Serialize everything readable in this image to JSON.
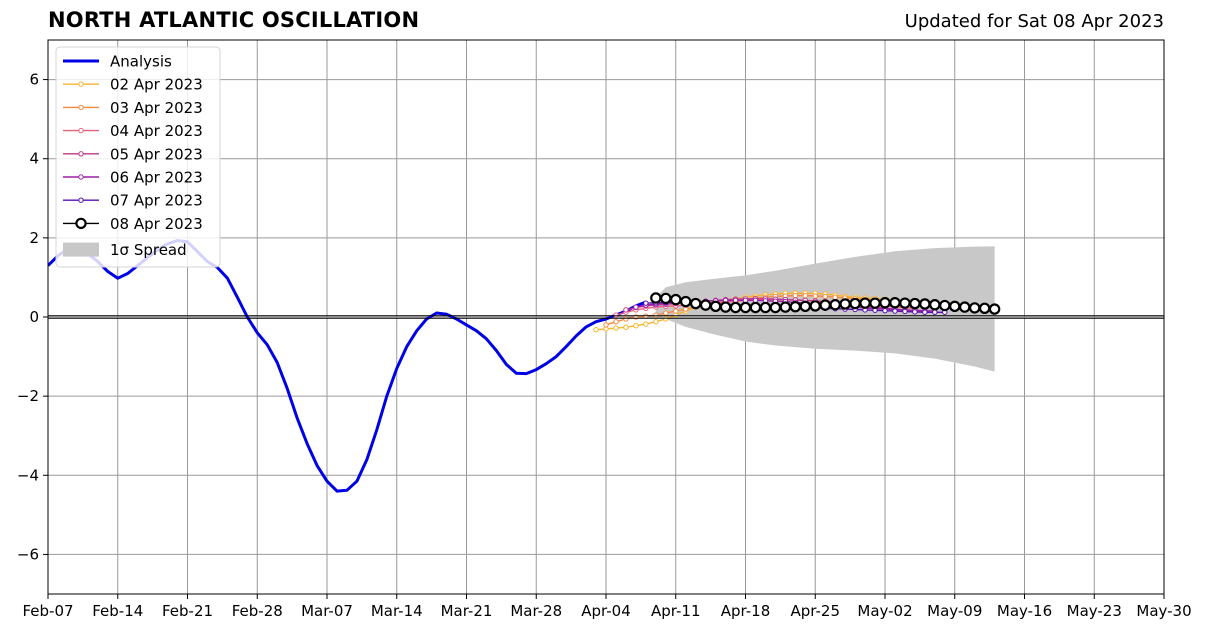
{
  "chart_data": {
    "type": "line",
    "title": "NORTH ATLANTIC OSCILLATION",
    "subtitle": "Updated for Sat 08 Apr 2023",
    "xlabel": "",
    "ylabel": "",
    "x_range": [
      "2023-02-07",
      "2023-05-30"
    ],
    "ylim": [
      -7,
      7
    ],
    "x_tick_labels": [
      "Feb-07",
      "Feb-14",
      "Feb-21",
      "Feb-28",
      "Mar-07",
      "Mar-14",
      "Mar-21",
      "Mar-28",
      "Apr-04",
      "Apr-11",
      "Apr-18",
      "Apr-25",
      "May-02",
      "May-09",
      "May-16",
      "May-23",
      "May-30"
    ],
    "y_ticks": [
      -6,
      -4,
      -2,
      0,
      2,
      4,
      6
    ],
    "y_tick_labels": [
      "−6",
      "−4",
      "−2",
      "0",
      "2",
      "4",
      "6"
    ],
    "grid": true,
    "legend_position": "top-left",
    "spread": {
      "label": "1σ Spread",
      "color": "#c8c8c8",
      "x": [
        "2023-04-09",
        "2023-04-10",
        "2023-04-12",
        "2023-04-15",
        "2023-04-18",
        "2023-04-21",
        "2023-04-25",
        "2023-04-29",
        "2023-05-03",
        "2023-05-07",
        "2023-05-11",
        "2023-05-13"
      ],
      "upper": [
        0.5,
        0.75,
        0.88,
        0.97,
        1.05,
        1.17,
        1.35,
        1.52,
        1.66,
        1.74,
        1.78,
        1.79
      ],
      "lower": [
        0.1,
        -0.05,
        -0.25,
        -0.45,
        -0.62,
        -0.72,
        -0.8,
        -0.85,
        -0.92,
        -1.05,
        -1.25,
        -1.38
      ]
    },
    "series": [
      {
        "name": "Analysis",
        "color": "#0000e6",
        "marker": "none",
        "x": [
          "2023-02-07",
          "2023-02-08",
          "2023-02-09",
          "2023-02-10",
          "2023-02-11",
          "2023-02-12",
          "2023-02-13",
          "2023-02-14",
          "2023-02-15",
          "2023-02-16",
          "2023-02-17",
          "2023-02-18",
          "2023-02-19",
          "2023-02-20",
          "2023-02-21",
          "2023-02-22",
          "2023-02-23",
          "2023-02-24",
          "2023-02-25",
          "2023-02-26",
          "2023-02-27",
          "2023-02-28",
          "2023-03-01",
          "2023-03-02",
          "2023-03-03",
          "2023-03-04",
          "2023-03-05",
          "2023-03-06",
          "2023-03-07",
          "2023-03-08",
          "2023-03-09",
          "2023-03-10",
          "2023-03-11",
          "2023-03-12",
          "2023-03-13",
          "2023-03-14",
          "2023-03-15",
          "2023-03-16",
          "2023-03-17",
          "2023-03-18",
          "2023-03-19",
          "2023-03-20",
          "2023-03-21",
          "2023-03-22",
          "2023-03-23",
          "2023-03-24",
          "2023-03-25",
          "2023-03-26",
          "2023-03-27",
          "2023-03-28",
          "2023-03-29",
          "2023-03-30",
          "2023-03-31",
          "2023-04-01",
          "2023-04-02",
          "2023-04-03",
          "2023-04-04",
          "2023-04-05",
          "2023-04-06",
          "2023-04-07",
          "2023-04-08"
        ],
        "values": [
          1.3,
          1.55,
          1.72,
          1.78,
          1.6,
          1.4,
          1.15,
          0.98,
          1.1,
          1.3,
          1.5,
          1.7,
          1.85,
          1.93,
          1.9,
          1.65,
          1.4,
          1.25,
          0.98,
          0.5,
          0.0,
          -0.4,
          -0.7,
          -1.15,
          -1.8,
          -2.55,
          -3.2,
          -3.75,
          -4.15,
          -4.4,
          -4.38,
          -4.15,
          -3.6,
          -2.85,
          -2.0,
          -1.3,
          -0.75,
          -0.35,
          -0.05,
          0.1,
          0.07,
          -0.05,
          -0.2,
          -0.35,
          -0.55,
          -0.85,
          -1.2,
          -1.42,
          -1.43,
          -1.33,
          -1.18,
          -1.0,
          -0.75,
          -0.48,
          -0.25,
          -0.12,
          -0.05,
          0.05,
          0.15,
          0.28,
          0.38
        ]
      },
      {
        "name": "02 Apr 2023",
        "color": "#f7b52f",
        "marker": "small",
        "x": [
          "2023-04-03",
          "2023-04-04",
          "2023-04-05",
          "2023-04-06",
          "2023-04-07",
          "2023-04-08",
          "2023-04-09",
          "2023-04-10",
          "2023-04-11",
          "2023-04-12",
          "2023-04-13",
          "2023-04-14",
          "2023-04-15",
          "2023-04-16",
          "2023-04-17",
          "2023-04-18",
          "2023-04-19",
          "2023-04-20",
          "2023-04-21",
          "2023-04-22",
          "2023-04-23",
          "2023-04-24",
          "2023-04-25",
          "2023-04-26",
          "2023-04-27",
          "2023-04-28",
          "2023-04-29",
          "2023-04-30",
          "2023-05-01",
          "2023-05-02",
          "2023-05-03"
        ],
        "values": [
          -0.32,
          -0.3,
          -0.28,
          -0.26,
          -0.22,
          -0.18,
          -0.12,
          -0.05,
          0.05,
          0.15,
          0.25,
          0.33,
          0.38,
          0.42,
          0.46,
          0.5,
          0.53,
          0.56,
          0.58,
          0.6,
          0.6,
          0.6,
          0.6,
          0.58,
          0.55,
          0.52,
          0.5,
          0.48,
          0.47,
          0.45,
          0.44
        ]
      },
      {
        "name": "03 Apr 2023",
        "color": "#f5893f",
        "marker": "small",
        "x": [
          "2023-04-04",
          "2023-04-05",
          "2023-04-06",
          "2023-04-07",
          "2023-04-08",
          "2023-04-09",
          "2023-04-10",
          "2023-04-11",
          "2023-04-12",
          "2023-04-13",
          "2023-04-14",
          "2023-04-15",
          "2023-04-16",
          "2023-04-17",
          "2023-04-18",
          "2023-04-19",
          "2023-04-20",
          "2023-04-21",
          "2023-04-22",
          "2023-04-23",
          "2023-04-24",
          "2023-04-25",
          "2023-04-26",
          "2023-04-27",
          "2023-04-28",
          "2023-04-29",
          "2023-04-30",
          "2023-05-01",
          "2023-05-02",
          "2023-05-03",
          "2023-05-04"
        ],
        "values": [
          -0.2,
          -0.12,
          -0.05,
          0.0,
          0.02,
          0.05,
          0.1,
          0.15,
          0.2,
          0.25,
          0.3,
          0.35,
          0.38,
          0.42,
          0.45,
          0.48,
          0.5,
          0.52,
          0.53,
          0.54,
          0.54,
          0.53,
          0.52,
          0.5,
          0.48,
          0.46,
          0.44,
          0.42,
          0.4,
          0.38,
          0.36
        ]
      },
      {
        "name": "04 Apr 2023",
        "color": "#e8607a",
        "marker": "small",
        "x": [
          "2023-04-05",
          "2023-04-06",
          "2023-04-07",
          "2023-04-08",
          "2023-04-09",
          "2023-04-10",
          "2023-04-11",
          "2023-04-12",
          "2023-04-13",
          "2023-04-14",
          "2023-04-15",
          "2023-04-16",
          "2023-04-17",
          "2023-04-18",
          "2023-04-19",
          "2023-04-20",
          "2023-04-21",
          "2023-04-22",
          "2023-04-23",
          "2023-04-24",
          "2023-04-25",
          "2023-04-26",
          "2023-04-27",
          "2023-04-28",
          "2023-04-29",
          "2023-04-30",
          "2023-05-01",
          "2023-05-02",
          "2023-05-03",
          "2023-05-04",
          "2023-05-05"
        ],
        "values": [
          0.05,
          0.12,
          0.18,
          0.22,
          0.25,
          0.27,
          0.28,
          0.3,
          0.32,
          0.34,
          0.36,
          0.38,
          0.4,
          0.42,
          0.43,
          0.44,
          0.44,
          0.44,
          0.43,
          0.42,
          0.41,
          0.4,
          0.38,
          0.36,
          0.34,
          0.32,
          0.3,
          0.28,
          0.26,
          0.24,
          0.22
        ]
      },
      {
        "name": "05 Apr 2023",
        "color": "#c0368c",
        "marker": "small",
        "x": [
          "2023-04-06",
          "2023-04-07",
          "2023-04-08",
          "2023-04-09",
          "2023-04-10",
          "2023-04-11",
          "2023-04-12",
          "2023-04-13",
          "2023-04-14",
          "2023-04-15",
          "2023-04-16",
          "2023-04-17",
          "2023-04-18",
          "2023-04-19",
          "2023-04-20",
          "2023-04-21",
          "2023-04-22",
          "2023-04-23",
          "2023-04-24",
          "2023-04-25",
          "2023-04-26",
          "2023-04-27",
          "2023-04-28",
          "2023-04-29",
          "2023-04-30",
          "2023-05-01",
          "2023-05-02",
          "2023-05-03",
          "2023-05-04",
          "2023-05-05",
          "2023-05-06"
        ],
        "values": [
          0.18,
          0.24,
          0.28,
          0.3,
          0.32,
          0.34,
          0.36,
          0.38,
          0.4,
          0.42,
          0.44,
          0.45,
          0.46,
          0.46,
          0.46,
          0.45,
          0.44,
          0.43,
          0.42,
          0.4,
          0.38,
          0.35,
          0.32,
          0.3,
          0.27,
          0.25,
          0.22,
          0.2,
          0.18,
          0.16,
          0.15
        ]
      },
      {
        "name": "06 Apr 2023",
        "color": "#9b1fa8",
        "marker": "small",
        "x": [
          "2023-04-07",
          "2023-04-08",
          "2023-04-09",
          "2023-04-10",
          "2023-04-11",
          "2023-04-12",
          "2023-04-13",
          "2023-04-14",
          "2023-04-15",
          "2023-04-16",
          "2023-04-17",
          "2023-04-18",
          "2023-04-19",
          "2023-04-20",
          "2023-04-21",
          "2023-04-22",
          "2023-04-23",
          "2023-04-24",
          "2023-04-25",
          "2023-04-26",
          "2023-04-27",
          "2023-04-28",
          "2023-04-29",
          "2023-04-30",
          "2023-05-01",
          "2023-05-02",
          "2023-05-03",
          "2023-05-04",
          "2023-05-05",
          "2023-05-06",
          "2023-05-07"
        ],
        "values": [
          0.25,
          0.3,
          0.33,
          0.35,
          0.37,
          0.38,
          0.39,
          0.4,
          0.41,
          0.42,
          0.42,
          0.42,
          0.42,
          0.41,
          0.4,
          0.39,
          0.37,
          0.35,
          0.33,
          0.31,
          0.29,
          0.27,
          0.25,
          0.23,
          0.21,
          0.2,
          0.19,
          0.18,
          0.17,
          0.16,
          0.15
        ]
      },
      {
        "name": "07 Apr 2023",
        "color": "#5a0fb0",
        "marker": "small",
        "x": [
          "2023-04-08",
          "2023-04-09",
          "2023-04-10",
          "2023-04-11",
          "2023-04-12",
          "2023-04-13",
          "2023-04-14",
          "2023-04-15",
          "2023-04-16",
          "2023-04-17",
          "2023-04-18",
          "2023-04-19",
          "2023-04-20",
          "2023-04-21",
          "2023-04-22",
          "2023-04-23",
          "2023-04-24",
          "2023-04-25",
          "2023-04-26",
          "2023-04-27",
          "2023-04-28",
          "2023-04-29",
          "2023-04-30",
          "2023-05-01",
          "2023-05-02",
          "2023-05-03",
          "2023-05-04",
          "2023-05-05",
          "2023-05-06",
          "2023-05-07",
          "2023-05-08"
        ],
        "values": [
          0.35,
          0.36,
          0.37,
          0.37,
          0.36,
          0.35,
          0.34,
          0.33,
          0.32,
          0.31,
          0.3,
          0.29,
          0.28,
          0.27,
          0.26,
          0.25,
          0.24,
          0.23,
          0.22,
          0.21,
          0.2,
          0.19,
          0.18,
          0.17,
          0.16,
          0.15,
          0.14,
          0.13,
          0.12,
          0.12,
          0.12
        ]
      },
      {
        "name": "08 Apr 2023",
        "color": "#000000",
        "marker": "open-circle",
        "x": [
          "2023-04-09",
          "2023-04-10",
          "2023-04-11",
          "2023-04-12",
          "2023-04-13",
          "2023-04-14",
          "2023-04-15",
          "2023-04-16",
          "2023-04-17",
          "2023-04-18",
          "2023-04-19",
          "2023-04-20",
          "2023-04-21",
          "2023-04-22",
          "2023-04-23",
          "2023-04-24",
          "2023-04-25",
          "2023-04-26",
          "2023-04-27",
          "2023-04-28",
          "2023-04-29",
          "2023-04-30",
          "2023-05-01",
          "2023-05-02",
          "2023-05-03",
          "2023-05-04",
          "2023-05-05",
          "2023-05-06",
          "2023-05-07",
          "2023-05-08",
          "2023-05-09",
          "2023-05-10",
          "2023-05-11",
          "2023-05-12",
          "2023-05-13"
        ],
        "values": [
          0.48,
          0.47,
          0.44,
          0.39,
          0.34,
          0.3,
          0.27,
          0.25,
          0.24,
          0.24,
          0.24,
          0.24,
          0.24,
          0.25,
          0.26,
          0.27,
          0.28,
          0.3,
          0.31,
          0.33,
          0.34,
          0.35,
          0.35,
          0.36,
          0.36,
          0.35,
          0.34,
          0.33,
          0.31,
          0.29,
          0.27,
          0.25,
          0.23,
          0.22,
          0.2
        ]
      }
    ]
  }
}
